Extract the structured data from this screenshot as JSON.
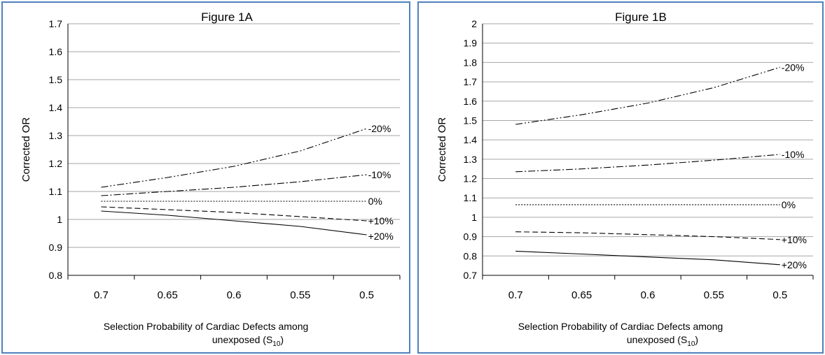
{
  "chart_data": [
    {
      "type": "line",
      "title": "Figure 1A",
      "ylabel": "Corrected OR",
      "xlabel_line1": "Selection Probability of Cardiac Defects among",
      "xlabel_line2_main": "unexposed (S",
      "xlabel_line2_sub": "10",
      "xlabel_line2_end": ")",
      "x": [
        0.7,
        0.65,
        0.6,
        0.55,
        0.5
      ],
      "x_tick_labels": [
        "0.7",
        "0.65",
        "0.6",
        "0.55",
        "0.5"
      ],
      "xlim": [
        0.725,
        0.475
      ],
      "ylim": [
        0.8,
        1.7
      ],
      "y_ticks": [
        0.8,
        0.9,
        1,
        1.1,
        1.2,
        1.3,
        1.4,
        1.5,
        1.6,
        1.7
      ],
      "y_tick_labels": [
        "0.8",
        "0.9",
        "1",
        "1.1",
        "1.2",
        "1.3",
        "1.4",
        "1.5",
        "1.6",
        "1.7"
      ],
      "grid": true,
      "series": [
        {
          "name": "-20%",
          "dash": "dashdotdot",
          "values": [
            1.115,
            1.15,
            1.19,
            1.245,
            1.325
          ]
        },
        {
          "name": "-10%",
          "dash": "dashdot",
          "values": [
            1.085,
            1.1,
            1.115,
            1.135,
            1.16
          ]
        },
        {
          "name": "0%",
          "dash": "dotted",
          "values": [
            1.065,
            1.065,
            1.065,
            1.065,
            1.065
          ]
        },
        {
          "name": "+10%",
          "dash": "dashed",
          "values": [
            1.045,
            1.035,
            1.025,
            1.01,
            0.995
          ]
        },
        {
          "name": "+20%",
          "dash": "solid",
          "values": [
            1.03,
            1.015,
            0.995,
            0.975,
            0.945
          ]
        }
      ]
    },
    {
      "type": "line",
      "title": "Figure 1B",
      "ylabel": "Corrected OR",
      "xlabel_line1": "Selection Probability of Cardiac Defects among",
      "xlabel_line2_main": "unexposed (S",
      "xlabel_line2_sub": "10",
      "xlabel_line2_end": ")",
      "x": [
        0.7,
        0.65,
        0.6,
        0.55,
        0.5
      ],
      "x_tick_labels": [
        "0.7",
        "0.65",
        "0.6",
        "0.55",
        "0.5"
      ],
      "xlim": [
        0.725,
        0.475
      ],
      "ylim": [
        0.7,
        2.0
      ],
      "y_ticks": [
        0.7,
        0.8,
        0.9,
        1,
        1.1,
        1.2,
        1.3,
        1.4,
        1.5,
        1.6,
        1.7,
        1.8,
        1.9,
        2
      ],
      "y_tick_labels": [
        "0.7",
        "0.8",
        "0.9",
        "1",
        "1.1",
        "1.2",
        "1.3",
        "1.4",
        "1.5",
        "1.6",
        "1.7",
        "1.8",
        "1.9",
        "2"
      ],
      "grid": true,
      "series": [
        {
          "name": "-20%",
          "dash": "dashdotdot",
          "values": [
            1.48,
            1.53,
            1.59,
            1.67,
            1.775
          ]
        },
        {
          "name": "-10%",
          "dash": "dashdot",
          "values": [
            1.235,
            1.25,
            1.27,
            1.295,
            1.325
          ]
        },
        {
          "name": "0%",
          "dash": "dotted",
          "values": [
            1.065,
            1.065,
            1.065,
            1.065,
            1.065
          ]
        },
        {
          "name": "+10%",
          "dash": "dashed",
          "values": [
            0.925,
            0.92,
            0.91,
            0.9,
            0.885
          ]
        },
        {
          "name": "+20%",
          "dash": "solid",
          "values": [
            0.825,
            0.81,
            0.795,
            0.78,
            0.755
          ]
        }
      ]
    }
  ]
}
